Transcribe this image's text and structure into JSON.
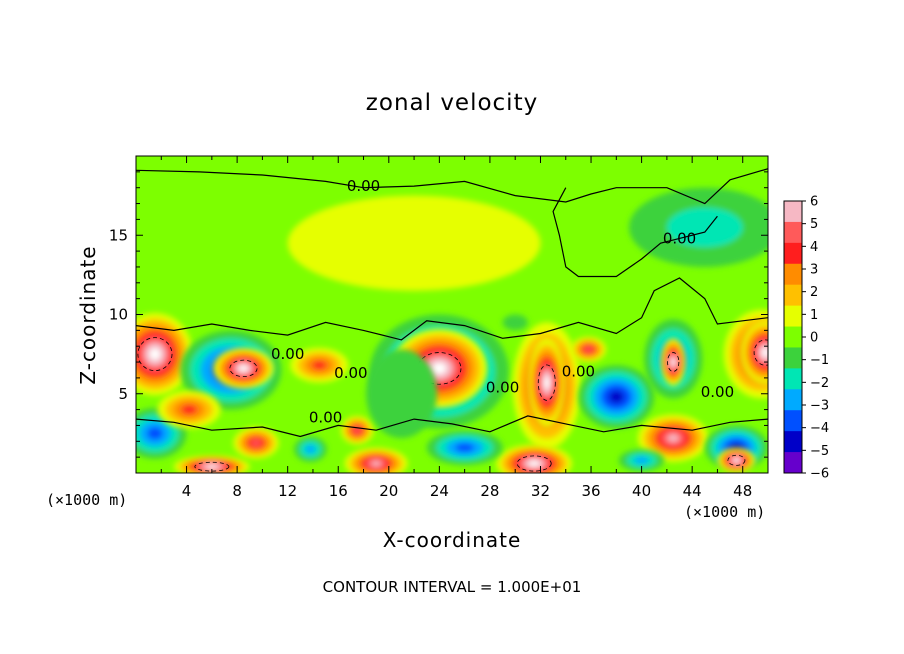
{
  "chart_data": {
    "type": "heatmap",
    "title": "zonal velocity",
    "xlabel": "X-coordinate",
    "ylabel": "Z-coordinate",
    "x_unit": "(×1000 m)",
    "footer": "CONTOUR INTERVAL = 1.000E+01",
    "xlim": [
      0,
      50
    ],
    "ylim": [
      0,
      20
    ],
    "x_ticks": [
      4,
      8,
      12,
      16,
      20,
      24,
      28,
      32,
      36,
      40,
      44,
      48
    ],
    "y_ticks": [
      5,
      10,
      15
    ],
    "grid": false,
    "colorbar": {
      "range": [
        -6,
        6
      ],
      "labels": [
        "6",
        "5",
        "4",
        "3",
        "2",
        "1",
        "0",
        "−1",
        "−2",
        "−3",
        "−4",
        "−5",
        "−6"
      ],
      "colors": [
        "#f6b8c4",
        "#ff5a5a",
        "#ff1e1e",
        "#ff8c00",
        "#ffc000",
        "#e6ff00",
        "#7dff00",
        "#3cd23c",
        "#00e6b4",
        "#00aaff",
        "#0050ff",
        "#0000c8",
        "#6600cc"
      ]
    },
    "contour_labels": [
      "0.00",
      "0.00",
      "0.00",
      "0.00",
      "0.00",
      "0.00",
      "0.00",
      "0.00"
    ],
    "background_value": 0.3,
    "blobs": [
      {
        "x": 1.5,
        "z": 7.5,
        "rx": 3.0,
        "rz": 2.6,
        "v": 7,
        "core": true
      },
      {
        "x": 1.5,
        "z": 2.5,
        "rx": 2.5,
        "rz": 1.6,
        "v": -4
      },
      {
        "x": 7.5,
        "z": 6.5,
        "rx": 4.0,
        "rz": 2.5,
        "v": -5
      },
      {
        "x": 8.5,
        "z": 6.6,
        "rx": 2.4,
        "rz": 1.3,
        "v": 7,
        "core": true
      },
      {
        "x": 4.2,
        "z": 4.0,
        "rx": 2.5,
        "rz": 1.2,
        "v": 4
      },
      {
        "x": 9.5,
        "z": 1.9,
        "rx": 1.8,
        "rz": 1.0,
        "v": 5
      },
      {
        "x": 14.5,
        "z": 6.8,
        "rx": 2.3,
        "rz": 1.1,
        "v": 4
      },
      {
        "x": 17.5,
        "z": 2.7,
        "rx": 1.3,
        "rz": 0.9,
        "v": 5
      },
      {
        "x": 13.8,
        "z": 1.5,
        "rx": 1.3,
        "rz": 0.8,
        "v": -3
      },
      {
        "x": 24.0,
        "z": 6.4,
        "rx": 5.5,
        "rz": 3.6,
        "v": -5
      },
      {
        "x": 24.0,
        "z": 6.6,
        "rx": 3.8,
        "rz": 2.5,
        "v": 7,
        "core": true
      },
      {
        "x": 32.5,
        "z": 5.5,
        "rx": 2.7,
        "rz": 4.0,
        "v": 6
      },
      {
        "x": 32.5,
        "z": 5.7,
        "rx": 1.5,
        "rz": 2.8,
        "v": 7,
        "core": true
      },
      {
        "x": 38.0,
        "z": 4.8,
        "rx": 3.0,
        "rz": 2.0,
        "v": -5
      },
      {
        "x": 35.8,
        "z": 7.8,
        "rx": 1.4,
        "rz": 0.8,
        "v": 5
      },
      {
        "x": 42.5,
        "z": 7.2,
        "rx": 2.3,
        "rz": 2.5,
        "v": -4
      },
      {
        "x": 42.5,
        "z": 7.0,
        "rx": 1.0,
        "rz": 1.5,
        "v": 7,
        "core": true
      },
      {
        "x": 49.5,
        "z": 7.5,
        "rx": 3.0,
        "rz": 2.8,
        "v": 6
      },
      {
        "x": 49.8,
        "z": 7.6,
        "rx": 2.0,
        "rz": 2.0,
        "v": 7,
        "core": true
      },
      {
        "x": 42.5,
        "z": 2.2,
        "rx": 2.8,
        "rz": 1.5,
        "v": 6
      },
      {
        "x": 47.5,
        "z": 1.6,
        "rx": 2.5,
        "rz": 1.4,
        "v": -5
      },
      {
        "x": 47.5,
        "z": 0.8,
        "rx": 1.5,
        "rz": 0.8,
        "v": 7,
        "core": true
      },
      {
        "x": 31.5,
        "z": 0.6,
        "rx": 3.0,
        "rz": 1.2,
        "v": 7,
        "core": true
      },
      {
        "x": 19.0,
        "z": 0.6,
        "rx": 2.5,
        "rz": 1.0,
        "v": 6
      },
      {
        "x": 26.0,
        "z": 1.6,
        "rx": 3.0,
        "rz": 1.1,
        "v": -4
      },
      {
        "x": 6.0,
        "z": 0.4,
        "rx": 3.0,
        "rz": 0.7,
        "v": 7,
        "core": true
      },
      {
        "x": 40.0,
        "z": 0.8,
        "rx": 1.8,
        "rz": 0.7,
        "v": -3
      },
      {
        "x": 21.0,
        "z": 5.0,
        "rx": 2.8,
        "rz": 2.8,
        "v": -1
      },
      {
        "x": 30.0,
        "z": 9.5,
        "rx": 1.0,
        "rz": 0.5,
        "v": -1
      },
      {
        "x": 22.0,
        "z": 14.5,
        "rx": 10.0,
        "rz": 3.0,
        "v": 0.8
      },
      {
        "x": 45.0,
        "z": 15.5,
        "rx": 6.0,
        "rz": 2.5,
        "v": -1.5
      }
    ]
  }
}
